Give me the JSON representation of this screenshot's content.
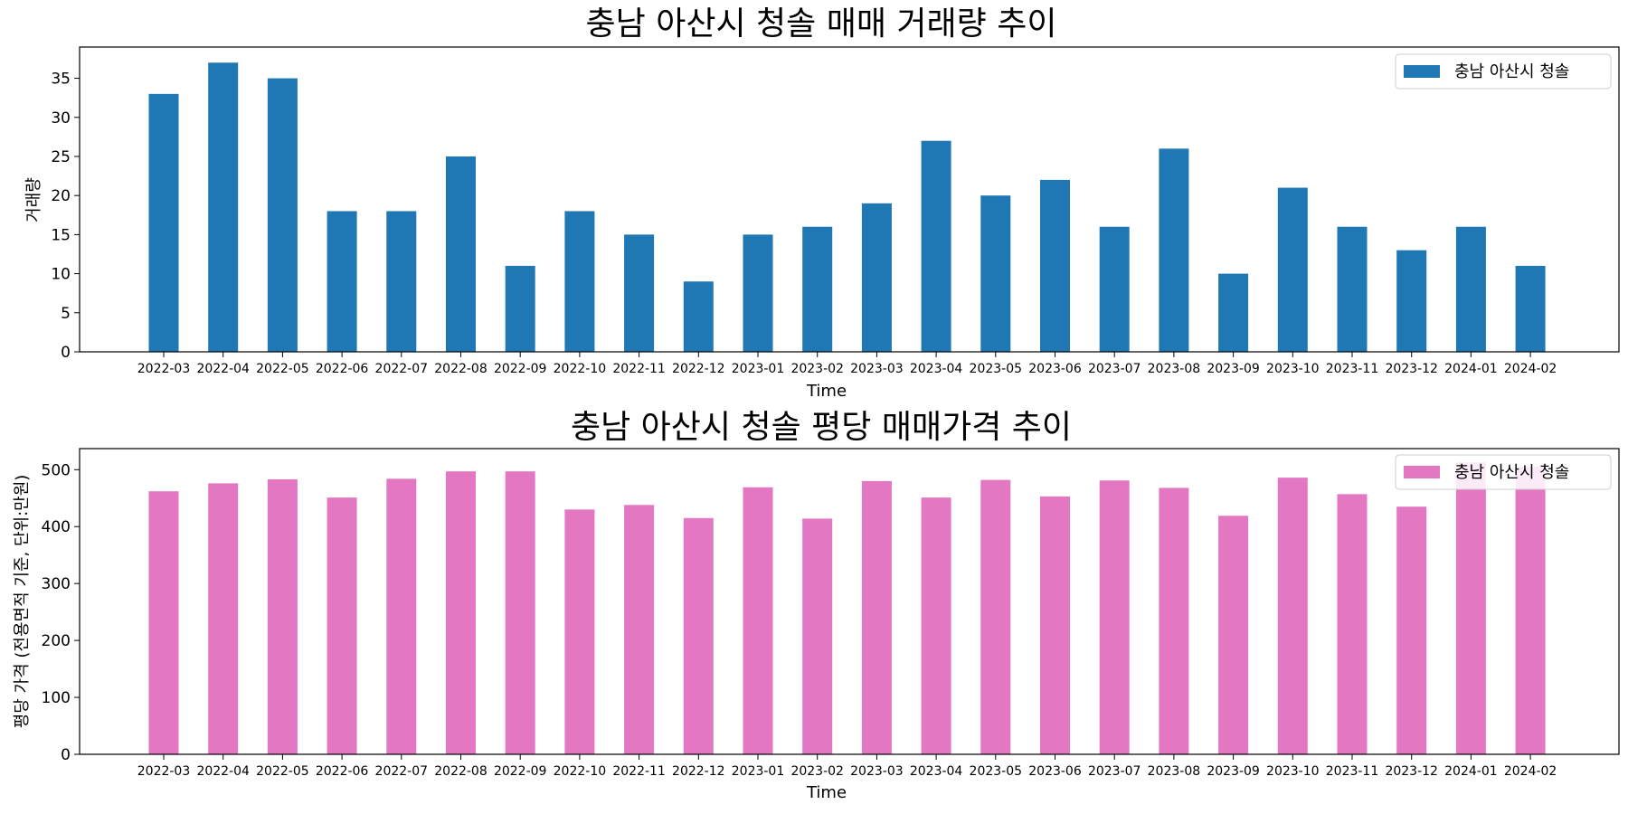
{
  "chart_data": [
    {
      "type": "bar",
      "title": "충남 아산시 청솔 매매 거래량 추이",
      "xlabel": "Time",
      "ylabel": "거래량",
      "ylim": [
        0,
        39
      ],
      "yticks": [
        0,
        5,
        10,
        15,
        20,
        25,
        30,
        35
      ],
      "grid": false,
      "legend_position": "top-right",
      "color": "#1f77b4",
      "categories": [
        "2022-03",
        "2022-04",
        "2022-05",
        "2022-06",
        "2022-07",
        "2022-08",
        "2022-09",
        "2022-10",
        "2022-11",
        "2022-12",
        "2023-01",
        "2023-02",
        "2023-03",
        "2023-04",
        "2023-05",
        "2023-06",
        "2023-07",
        "2023-08",
        "2023-09",
        "2023-10",
        "2023-11",
        "2023-12",
        "2024-01",
        "2024-02"
      ],
      "series": [
        {
          "name": "충남 아산시 청솔",
          "values": [
            33,
            37,
            35,
            18,
            18,
            25,
            11,
            18,
            15,
            9,
            15,
            16,
            19,
            27,
            20,
            22,
            16,
            26,
            10,
            21,
            16,
            13,
            16,
            11
          ]
        }
      ]
    },
    {
      "type": "bar",
      "title": "충남 아산시 청솔 평당 매매가격 추이",
      "xlabel": "Time",
      "ylabel": "평당 가격 (전용면적 기준, 단위:만원)",
      "ylim": [
        0,
        537
      ],
      "yticks": [
        0,
        100,
        200,
        300,
        400,
        500
      ],
      "grid": false,
      "legend_position": "top-right",
      "color": "#e377c2",
      "categories": [
        "2022-03",
        "2022-04",
        "2022-05",
        "2022-06",
        "2022-07",
        "2022-08",
        "2022-09",
        "2022-10",
        "2022-11",
        "2022-12",
        "2023-01",
        "2023-02",
        "2023-03",
        "2023-04",
        "2023-05",
        "2023-06",
        "2023-07",
        "2023-08",
        "2023-09",
        "2023-10",
        "2023-11",
        "2023-12",
        "2024-01",
        "2024-02"
      ],
      "series": [
        {
          "name": "충남 아산시 청솔",
          "values": [
            462,
            476,
            483,
            451,
            484,
            497,
            497,
            430,
            438,
            415,
            469,
            414,
            480,
            451,
            482,
            453,
            481,
            468,
            419,
            486,
            457,
            435,
            513,
            505
          ]
        }
      ]
    }
  ]
}
